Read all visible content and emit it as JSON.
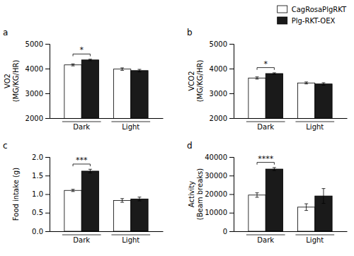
{
  "chart_data": [
    {
      "type": "bar",
      "title": "a",
      "ylabel": "VO2\n(MG/KG/HR)",
      "categories": [
        "Dark",
        "Light"
      ],
      "series": [
        {
          "name": "CagRosaPlgRKT",
          "color": "#ffffff",
          "values": [
            4150,
            3980
          ],
          "errors": [
            40,
            50
          ]
        },
        {
          "name": "Plg-RKT-OEX",
          "color": "#1a1a1a",
          "values": [
            4350,
            3920
          ],
          "errors": [
            30,
            50
          ]
        }
      ],
      "ylim": [
        2000,
        5000
      ],
      "yticks": [
        2000,
        3000,
        4000,
        5000
      ],
      "annotations": [
        {
          "text": "*",
          "x": "Dark"
        }
      ],
      "legend": "upper right"
    },
    {
      "type": "bar",
      "title": "b",
      "ylabel": "VCO2\n(MG/KG/HR)",
      "categories": [
        "Dark",
        "Light"
      ],
      "series": [
        {
          "color": "#ffffff",
          "values": [
            3620,
            3420
          ],
          "errors": [
            45,
            40
          ]
        },
        {
          "color": "#1a1a1a",
          "values": [
            3800,
            3380
          ],
          "errors": [
            30,
            50
          ]
        }
      ],
      "ylim": [
        2000,
        5000
      ],
      "yticks": [
        2000,
        3000,
        4000,
        5000
      ],
      "annotations": [
        {
          "text": "*",
          "x": "Dark"
        }
      ]
    },
    {
      "type": "bar",
      "title": "c",
      "ylabel": "Food intake (g)",
      "categories": [
        "Dark",
        "Light"
      ],
      "series": [
        {
          "color": "#ffffff",
          "values": [
            1.1,
            0.83
          ],
          "errors": [
            0.03,
            0.05
          ]
        },
        {
          "color": "#1a1a1a",
          "values": [
            1.62,
            0.87
          ],
          "errors": [
            0.05,
            0.05
          ]
        }
      ],
      "ylim": [
        0.0,
        2.0
      ],
      "yticks": [
        {
          "value": 0.0,
          "label": "0.0"
        },
        0.5,
        {
          "value": 1.0,
          "label": "1.0"
        },
        1.5,
        {
          "value": 2.0,
          "label": "2.0"
        }
      ],
      "annotations": [
        {
          "text": "***",
          "x": "Dark"
        }
      ]
    },
    {
      "type": "bar",
      "title": "d",
      "ylabel": "Activity\n(Beam breaks)",
      "categories": [
        "Dark",
        "Light"
      ],
      "series": [
        {
          "color": "#ffffff",
          "values": [
            19500,
            13000
          ],
          "errors": [
            1200,
            1800
          ]
        },
        {
          "color": "#1a1a1a",
          "values": [
            33500,
            19000
          ],
          "errors": [
            800,
            4000
          ]
        }
      ],
      "ylim": [
        0,
        40000
      ],
      "yticks": [
        0,
        10000,
        20000,
        30000,
        40000
      ],
      "annotations": [
        {
          "text": "****",
          "x": "Dark"
        }
      ]
    }
  ]
}
